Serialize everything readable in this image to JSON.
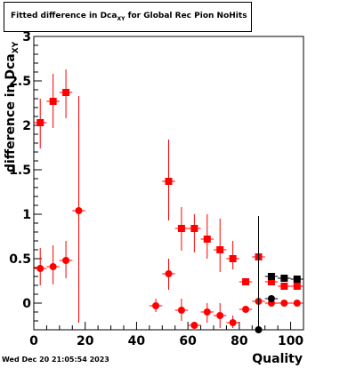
{
  "title_main": "Fitted difference in Dca",
  "title_sub": "XY",
  "title_rest": " for Global Rec Pion NoHits",
  "ylabel_main": "difference in Dca",
  "ylabel_sub": "XY",
  "xlabel": "Quality",
  "timestamp": "Wed Dec 20 21:05:54 2023",
  "chart_data": {
    "type": "scatter",
    "title": "Fitted difference in Dca_XY for Global Rec Pion NoHits",
    "xlabel": "Quality",
    "ylabel": "difference in Dca_XY",
    "xlim": [
      0,
      105
    ],
    "ylim": [
      -0.3,
      3.0
    ],
    "x_ticks": [
      0,
      20,
      40,
      60,
      80,
      100
    ],
    "y_ticks": [
      0,
      0.5,
      1,
      1.5,
      2,
      2.5,
      3
    ],
    "x_tick_labels": [
      "0",
      "20",
      "40",
      "60",
      "80",
      "100"
    ],
    "y_tick_labels": [
      "0",
      "0.5",
      "1",
      "1.5",
      "2",
      "2.5",
      "3"
    ],
    "grid": false,
    "series": [
      {
        "marker": "square",
        "color": "#ff0000",
        "points": [
          {
            "x": 2.5,
            "y": 2.03,
            "ylo": 1.74,
            "yhi": 2.3
          },
          {
            "x": 7.5,
            "y": 2.27,
            "ylo": 1.97,
            "yhi": 2.58
          },
          {
            "x": 12.5,
            "y": 2.37,
            "ylo": 2.08,
            "yhi": 2.63
          },
          {
            "x": 52.5,
            "y": 1.37,
            "ylo": 0.93,
            "yhi": 1.84
          },
          {
            "x": 57.5,
            "y": 0.84,
            "ylo": 0.59,
            "yhi": 1.08
          },
          {
            "x": 62.5,
            "y": 0.84,
            "ylo": 0.57,
            "yhi": 1.0
          },
          {
            "x": 67.5,
            "y": 0.72,
            "ylo": 0.5,
            "yhi": 1.0
          },
          {
            "x": 72.5,
            "y": 0.6,
            "ylo": 0.35,
            "yhi": 0.95
          },
          {
            "x": 77.5,
            "y": 0.5,
            "ylo": 0.38,
            "yhi": 0.7
          },
          {
            "x": 82.5,
            "y": 0.24,
            "ylo": 0.21,
            "yhi": 0.27
          },
          {
            "x": 87.5,
            "y": 0.52,
            "ylo": 0.38,
            "yhi": 0.67
          },
          {
            "x": 92.5,
            "y": 0.24,
            "ylo": 0.23,
            "yhi": 0.25
          },
          {
            "x": 97.5,
            "y": 0.19,
            "ylo": 0.18,
            "yhi": 0.2
          },
          {
            "x": 102.5,
            "y": 0.19,
            "ylo": 0.18,
            "yhi": 0.2
          }
        ]
      },
      {
        "marker": "circle",
        "color": "#ff0000",
        "points": [
          {
            "x": 2.5,
            "y": 0.39,
            "ylo": 0.2,
            "yhi": 0.62
          },
          {
            "x": 7.5,
            "y": 0.41,
            "ylo": 0.21,
            "yhi": 0.65
          },
          {
            "x": 12.5,
            "y": 0.48,
            "ylo": 0.28,
            "yhi": 0.7
          },
          {
            "x": 17.5,
            "y": 1.04,
            "ylo": -0.22,
            "yhi": 2.33
          },
          {
            "x": 47.5,
            "y": -0.03,
            "ylo": -0.1,
            "yhi": 0.05
          },
          {
            "x": 52.5,
            "y": 0.33,
            "ylo": 0.15,
            "yhi": 0.5
          },
          {
            "x": 57.5,
            "y": -0.08,
            "ylo": -0.2,
            "yhi": 0.05
          },
          {
            "x": 62.5,
            "y": -0.25,
            "ylo": -0.28,
            "yhi": -0.21
          },
          {
            "x": 67.5,
            "y": -0.1,
            "ylo": -0.22,
            "yhi": 0.0
          },
          {
            "x": 72.5,
            "y": -0.14,
            "ylo": -0.28,
            "yhi": 0.0
          },
          {
            "x": 77.5,
            "y": -0.22,
            "ylo": -0.28,
            "yhi": -0.14
          },
          {
            "x": 82.5,
            "y": -0.07,
            "ylo": -0.1,
            "yhi": -0.05
          },
          {
            "x": 87.5,
            "y": 0.02,
            "ylo": -0.05,
            "yhi": 0.1
          },
          {
            "x": 92.5,
            "y": 0.0,
            "ylo": -0.01,
            "yhi": 0.01
          },
          {
            "x": 97.5,
            "y": 0.0,
            "ylo": -0.01,
            "yhi": 0.01
          },
          {
            "x": 102.5,
            "y": 0.0,
            "ylo": -0.01,
            "yhi": 0.01
          }
        ]
      },
      {
        "marker": "square",
        "color": "#000000",
        "points": [
          {
            "x": 92.5,
            "y": 0.3,
            "ylo": 0.29,
            "yhi": 0.31
          },
          {
            "x": 97.5,
            "y": 0.28,
            "ylo": 0.27,
            "yhi": 0.29
          },
          {
            "x": 102.5,
            "y": 0.27,
            "ylo": 0.26,
            "yhi": 0.28
          }
        ]
      },
      {
        "marker": "circle",
        "color": "#000000",
        "points": [
          {
            "x": 87.5,
            "y": -0.3,
            "ylo": -0.3,
            "yhi": 0.98
          },
          {
            "x": 92.5,
            "y": 0.05,
            "ylo": 0.04,
            "yhi": 0.06
          }
        ]
      }
    ]
  }
}
